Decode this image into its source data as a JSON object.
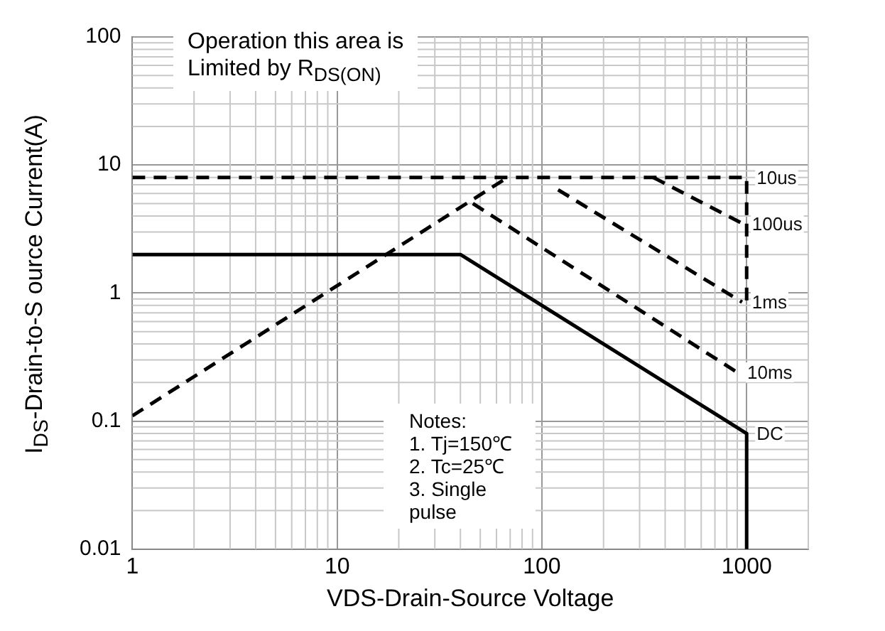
{
  "chart_data": {
    "type": "line",
    "xlabel": "VDS-Drain-Source Voltage",
    "ylabel": "I$_{DS}$-Drain-to-S ource Current(A)",
    "log": "xy",
    "grid": true,
    "legend": false,
    "marker": "none",
    "xlim": [
      1,
      2000
    ],
    "xticks": [
      1,
      10,
      100,
      1000
    ],
    "ylim": [
      0.01,
      100
    ],
    "yticks": [
      0.01,
      0.1,
      1,
      10,
      100
    ],
    "annotations": [
      "Operation this area is\nLimited  by R$_{DS(ON)}$",
      "Notes:\n1. Tj=150℃\n2. Tc=25℃\n3. Single\npulse"
    ],
    "series": [
      {
        "color": "#000000",
        "line_style": "dashed",
        "x": [
          1,
          68
        ],
        "values": [
          0.11,
          8
        ]
      },
      {
        "name": "10us",
        "color": "#000000",
        "line_style": "dashed",
        "x": [
          1,
          1000,
          1000
        ],
        "values": [
          8,
          8,
          0.8
        ]
      },
      {
        "name": "100us",
        "color": "#000000",
        "line_style": "dashed",
        "x": [
          350,
          950
        ],
        "values": [
          8,
          3.5
        ]
      },
      {
        "name": "1ms",
        "color": "#000000",
        "line_style": "dashed",
        "x": [
          120,
          950
        ],
        "values": [
          6.4,
          0.85
        ]
      },
      {
        "name": "10ms",
        "color": "#000000",
        "line_style": "dashed",
        "x": [
          46,
          900
        ],
        "values": [
          5,
          0.24
        ]
      },
      {
        "name": "DC",
        "color": "#000000",
        "line_style": "solid",
        "x": [
          1,
          40,
          1000,
          1000
        ],
        "values": [
          2,
          2,
          0.08,
          0.01
        ]
      }
    ]
  }
}
